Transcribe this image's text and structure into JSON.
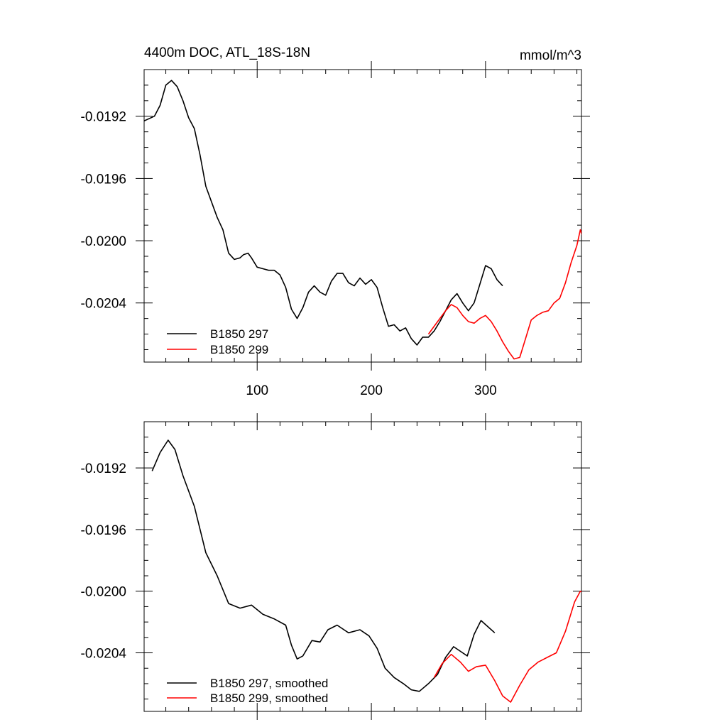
{
  "figure": {
    "title": "4400m DOC, ATL_18S-18N",
    "units": "mmol/m^3"
  },
  "chart_data": [
    {
      "type": "line",
      "panel": "top",
      "title": "4400m DOC, ATL_18S-18N",
      "units_label": "mmol/m^3",
      "xlabel": "",
      "ylabel": "",
      "xlim": [
        1,
        384
      ],
      "ylim": [
        -0.02078,
        -0.0189
      ],
      "x_ticks": [
        100,
        200,
        300
      ],
      "x_tick_labels": [
        "100",
        "200",
        "300"
      ],
      "y_ticks": [
        -0.0192,
        -0.0196,
        -0.02,
        -0.0204
      ],
      "y_tick_labels": [
        "-0.0192",
        "-0.0196",
        "-0.0200",
        "-0.0204"
      ],
      "grid": false,
      "legend_position": "bottom-left",
      "series": [
        {
          "name": "B1850 297",
          "color": "#000000",
          "points": [
            [
              1,
              -0.01923
            ],
            [
              10,
              -0.0192
            ],
            [
              15,
              -0.01913
            ],
            [
              20,
              -0.019
            ],
            [
              25,
              -0.01897
            ],
            [
              30,
              -0.01901
            ],
            [
              35,
              -0.0191
            ],
            [
              40,
              -0.01921
            ],
            [
              45,
              -0.01928
            ],
            [
              50,
              -0.01945
            ],
            [
              55,
              -0.01965
            ],
            [
              60,
              -0.01975
            ],
            [
              65,
              -0.01985
            ],
            [
              70,
              -0.01993
            ],
            [
              75,
              -0.02008
            ],
            [
              80,
              -0.02012
            ],
            [
              85,
              -0.02011
            ],
            [
              88,
              -0.02009
            ],
            [
              92,
              -0.02008
            ],
            [
              95,
              -0.02011
            ],
            [
              100,
              -0.02017
            ],
            [
              105,
              -0.02018
            ],
            [
              110,
              -0.02019
            ],
            [
              115,
              -0.02019
            ],
            [
              120,
              -0.02022
            ],
            [
              125,
              -0.0203
            ],
            [
              130,
              -0.02044
            ],
            [
              135,
              -0.0205
            ],
            [
              140,
              -0.02043
            ],
            [
              145,
              -0.02033
            ],
            [
              150,
              -0.02029
            ],
            [
              155,
              -0.02033
            ],
            [
              160,
              -0.02035
            ],
            [
              165,
              -0.02026
            ],
            [
              170,
              -0.02021
            ],
            [
              175,
              -0.02021
            ],
            [
              180,
              -0.02027
            ],
            [
              185,
              -0.02029
            ],
            [
              190,
              -0.02024
            ],
            [
              195,
              -0.02028
            ],
            [
              200,
              -0.02025
            ],
            [
              205,
              -0.0203
            ],
            [
              210,
              -0.02043
            ],
            [
              215,
              -0.02055
            ],
            [
              220,
              -0.02054
            ],
            [
              225,
              -0.02058
            ],
            [
              230,
              -0.02056
            ],
            [
              235,
              -0.02063
            ],
            [
              240,
              -0.02067
            ],
            [
              245,
              -0.02062
            ],
            [
              250,
              -0.02062
            ],
            [
              255,
              -0.02058
            ],
            [
              260,
              -0.02052
            ],
            [
              265,
              -0.02045
            ],
            [
              270,
              -0.02038
            ],
            [
              275,
              -0.02034
            ],
            [
              280,
              -0.0204
            ],
            [
              285,
              -0.02045
            ],
            [
              290,
              -0.0204
            ],
            [
              295,
              -0.02028
            ],
            [
              300,
              -0.02016
            ],
            [
              305,
              -0.02018
            ],
            [
              310,
              -0.02025
            ],
            [
              315,
              -0.02029
            ]
          ]
        },
        {
          "name": "B1850 299",
          "color": "#ff0000",
          "points": [
            [
              250,
              -0.0206
            ],
            [
              255,
              -0.02055
            ],
            [
              260,
              -0.0205
            ],
            [
              265,
              -0.02045
            ],
            [
              270,
              -0.02041
            ],
            [
              275,
              -0.02043
            ],
            [
              280,
              -0.02048
            ],
            [
              285,
              -0.02052
            ],
            [
              290,
              -0.02053
            ],
            [
              295,
              -0.0205
            ],
            [
              300,
              -0.02048
            ],
            [
              305,
              -0.02052
            ],
            [
              310,
              -0.02058
            ],
            [
              315,
              -0.02065
            ],
            [
              320,
              -0.02071
            ],
            [
              325,
              -0.02076
            ],
            [
              330,
              -0.02075
            ],
            [
              335,
              -0.02063
            ],
            [
              340,
              -0.02051
            ],
            [
              345,
              -0.02048
            ],
            [
              350,
              -0.02046
            ],
            [
              355,
              -0.02045
            ],
            [
              360,
              -0.0204
            ],
            [
              365,
              -0.02037
            ],
            [
              370,
              -0.02027
            ],
            [
              375,
              -0.02014
            ],
            [
              380,
              -0.02003
            ],
            [
              383,
              -0.01993
            ],
            [
              386,
              -0.02
            ],
            [
              390,
              -0.02007
            ],
            [
              394,
              -0.02008
            ]
          ]
        }
      ]
    },
    {
      "type": "line",
      "panel": "bottom",
      "title": "",
      "xlabel": "",
      "ylabel": "",
      "xlim": [
        1,
        384
      ],
      "ylim": [
        -0.02078,
        -0.0189
      ],
      "x_ticks": [
        100,
        200,
        300
      ],
      "x_tick_labels": [],
      "y_ticks": [
        -0.0192,
        -0.0196,
        -0.02,
        -0.0204
      ],
      "y_tick_labels": [
        "-0.0192",
        "-0.0196",
        "-0.0200",
        "-0.0204"
      ],
      "grid": false,
      "legend_position": "bottom-left",
      "series": [
        {
          "name": "B1850 297, smoothed",
          "color": "#000000",
          "points": [
            [
              8,
              -0.01922
            ],
            [
              15,
              -0.0191
            ],
            [
              22,
              -0.01902
            ],
            [
              28,
              -0.01908
            ],
            [
              35,
              -0.01925
            ],
            [
              45,
              -0.01945
            ],
            [
              55,
              -0.01975
            ],
            [
              65,
              -0.0199
            ],
            [
              75,
              -0.02008
            ],
            [
              85,
              -0.02011
            ],
            [
              95,
              -0.02009
            ],
            [
              105,
              -0.02015
            ],
            [
              115,
              -0.02018
            ],
            [
              125,
              -0.02022
            ],
            [
              130,
              -0.02035
            ],
            [
              135,
              -0.02044
            ],
            [
              140,
              -0.02042
            ],
            [
              148,
              -0.02032
            ],
            [
              155,
              -0.02033
            ],
            [
              162,
              -0.02025
            ],
            [
              170,
              -0.02022
            ],
            [
              180,
              -0.02027
            ],
            [
              190,
              -0.02025
            ],
            [
              198,
              -0.02029
            ],
            [
              205,
              -0.02037
            ],
            [
              212,
              -0.0205
            ],
            [
              220,
              -0.02056
            ],
            [
              228,
              -0.0206
            ],
            [
              235,
              -0.02064
            ],
            [
              242,
              -0.02065
            ],
            [
              250,
              -0.0206
            ],
            [
              258,
              -0.02054
            ],
            [
              265,
              -0.02043
            ],
            [
              272,
              -0.02036
            ],
            [
              278,
              -0.02039
            ],
            [
              284,
              -0.02042
            ],
            [
              290,
              -0.02028
            ],
            [
              296,
              -0.02019
            ],
            [
              302,
              -0.02023
            ],
            [
              308,
              -0.02027
            ]
          ]
        },
        {
          "name": "B1850 299, smoothed",
          "color": "#ff0000",
          "points": [
            [
              255,
              -0.02056
            ],
            [
              262,
              -0.02047
            ],
            [
              270,
              -0.02041
            ],
            [
              278,
              -0.02046
            ],
            [
              285,
              -0.02052
            ],
            [
              292,
              -0.02049
            ],
            [
              300,
              -0.02048
            ],
            [
              308,
              -0.02058
            ],
            [
              315,
              -0.02068
            ],
            [
              322,
              -0.02072
            ],
            [
              330,
              -0.02061
            ],
            [
              338,
              -0.02051
            ],
            [
              346,
              -0.02046
            ],
            [
              354,
              -0.02043
            ],
            [
              362,
              -0.0204
            ],
            [
              370,
              -0.02026
            ],
            [
              378,
              -0.02007
            ],
            [
              383,
              -0.02
            ],
            [
              386,
              -0.02001
            ],
            [
              390,
              -0.02002
            ]
          ]
        }
      ]
    }
  ]
}
